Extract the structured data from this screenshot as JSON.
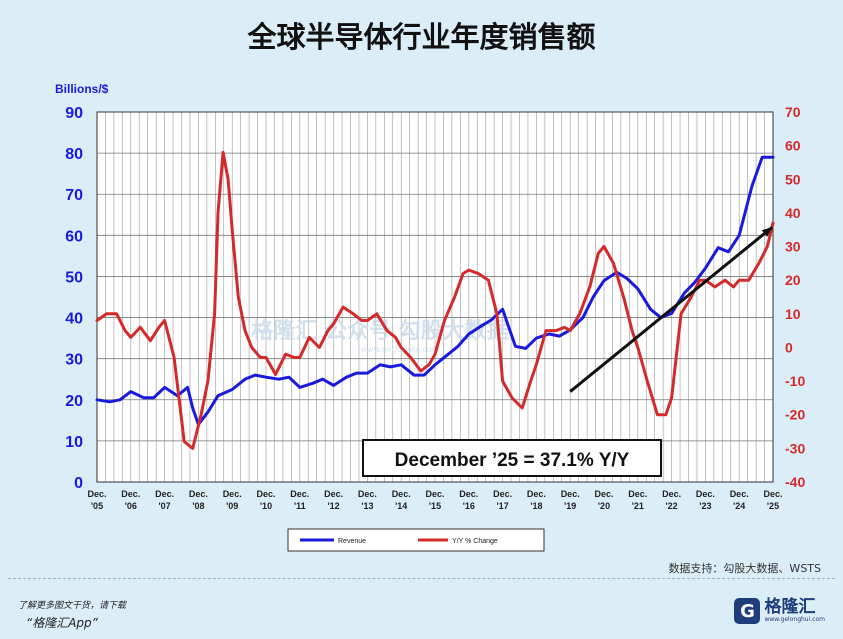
{
  "title": "全球半导体行业年度销售额",
  "source": "数据支持：勾股大数据、WSTS",
  "promo_line1": "了解更多图文干货，请下载",
  "promo_line2": "“格隆汇App”",
  "logo": {
    "mark": "G",
    "name": "格隆汇",
    "url": "www.gelonghui.com"
  },
  "watermark": {
    "text": "格隆汇 公众号 勾股大数据",
    "url": "www.gogudata.com"
  },
  "colors": {
    "revenue": "#1a1adf",
    "yoy": "#d42a2a",
    "left_axis": "#1a1adf",
    "right_axis": "#d42a2a",
    "background": "#dbeef8"
  },
  "chart_data": {
    "type": "line",
    "left_axis_label": "Billions/$",
    "left_ylim": [
      0,
      90
    ],
    "left_ticks": [
      "0",
      "10",
      "20",
      "30",
      "40",
      "50",
      "60",
      "70",
      "80",
      "90"
    ],
    "right_ylim": [
      -40,
      70
    ],
    "right_ticks": [
      "-40",
      "-30",
      "-20",
      "-10",
      "0",
      "10",
      "20",
      "30",
      "40",
      "50",
      "60",
      "70"
    ],
    "x_labels": [
      [
        "Dec.",
        "'05"
      ],
      [
        "Dec.",
        "'06"
      ],
      [
        "Dec.",
        "'07"
      ],
      [
        "Dec.",
        "'08"
      ],
      [
        "Dec.",
        "'09"
      ],
      [
        "Dec.",
        "'10"
      ],
      [
        "Dec.",
        "'11"
      ],
      [
        "Dec.",
        "'12"
      ],
      [
        "Dec.",
        "'13"
      ],
      [
        "Dec.",
        "'14"
      ],
      [
        "Dec.",
        "'15"
      ],
      [
        "Dec.",
        "'16"
      ],
      [
        "Dec.",
        "'17"
      ],
      [
        "Dec.",
        "'18"
      ],
      [
        "Dec.",
        "'19"
      ],
      [
        "Dec.",
        "'20"
      ],
      [
        "Dec.",
        "'21"
      ],
      [
        "Dec.",
        "'22"
      ],
      [
        "Dec.",
        "'23"
      ],
      [
        "Dec.",
        "'24"
      ],
      [
        "Dec.",
        "'25"
      ]
    ],
    "x_range_years": [
      2005.92,
      2025.92
    ],
    "grid": true,
    "annotation": "December ’25 = 37.1% Y/Y",
    "trend_arrow": {
      "from": [
        2019.92,
        22
      ],
      "to": [
        2025.9,
        62
      ]
    },
    "series": [
      {
        "name": "Revenue",
        "axis": "left",
        "x": [
          2005.92,
          2006.3,
          2006.6,
          2006.92,
          2007.3,
          2007.6,
          2007.92,
          2008.3,
          2008.6,
          2008.75,
          2008.92,
          2009.2,
          2009.5,
          2009.92,
          2010.3,
          2010.6,
          2010.92,
          2011.3,
          2011.6,
          2011.92,
          2012.3,
          2012.6,
          2012.92,
          2013.3,
          2013.6,
          2013.92,
          2014.3,
          2014.6,
          2014.92,
          2015.3,
          2015.6,
          2015.92,
          2016.3,
          2016.6,
          2016.92,
          2017.3,
          2017.6,
          2017.92,
          2018.3,
          2018.6,
          2018.92,
          2019.3,
          2019.6,
          2019.92,
          2020.3,
          2020.6,
          2020.92,
          2021.3,
          2021.6,
          2021.92,
          2022.3,
          2022.6,
          2022.92,
          2023.3,
          2023.6,
          2023.92,
          2024.3,
          2024.6,
          2024.92,
          2025.3,
          2025.6,
          2025.92
        ],
        "values": [
          20,
          19.5,
          20,
          22,
          20.5,
          20.5,
          23,
          21,
          23,
          18,
          14,
          17,
          21,
          22.5,
          25,
          26,
          25.5,
          25,
          25.5,
          23,
          24,
          25,
          23.5,
          25.5,
          26.5,
          26.5,
          28.5,
          28,
          28.5,
          26,
          26,
          28.5,
          31,
          33,
          36,
          38,
          39.5,
          42,
          33,
          32.5,
          35,
          36,
          35.5,
          37,
          40,
          45,
          49,
          51,
          49.5,
          47,
          42,
          40,
          41,
          46,
          48.5,
          52,
          57,
          56,
          60,
          72,
          79,
          79
        ]
      },
      {
        "name": "Y/Y % Change",
        "axis": "right",
        "x": [
          2005.92,
          2006.2,
          2006.5,
          2006.75,
          2006.92,
          2007.2,
          2007.5,
          2007.75,
          2007.92,
          2008.2,
          2008.5,
          2008.75,
          2009.0,
          2009.2,
          2009.4,
          2009.5,
          2009.65,
          2009.8,
          2009.92,
          2010.1,
          2010.3,
          2010.5,
          2010.75,
          2010.92,
          2011.2,
          2011.5,
          2011.75,
          2011.92,
          2012.2,
          2012.5,
          2012.75,
          2012.92,
          2013.2,
          2013.5,
          2013.75,
          2013.92,
          2014.2,
          2014.5,
          2014.75,
          2014.92,
          2015.2,
          2015.5,
          2015.75,
          2015.92,
          2016.2,
          2016.5,
          2016.75,
          2016.92,
          2017.2,
          2017.5,
          2017.75,
          2017.92,
          2018.2,
          2018.5,
          2018.75,
          2018.92,
          2019.2,
          2019.5,
          2019.75,
          2019.92,
          2020.2,
          2020.5,
          2020.75,
          2020.92,
          2021.2,
          2021.5,
          2021.75,
          2021.92,
          2022.2,
          2022.5,
          2022.75,
          2022.92,
          2023.2,
          2023.5,
          2023.75,
          2023.92,
          2024.2,
          2024.5,
          2024.75,
          2024.92,
          2025.2,
          2025.5,
          2025.75,
          2025.92
        ],
        "values": [
          8,
          10,
          10,
          5,
          3,
          6,
          2,
          6,
          8,
          -3,
          -28,
          -30,
          -20,
          -10,
          10,
          40,
          58,
          50,
          35,
          15,
          5,
          0,
          -3,
          -3,
          -8,
          -2,
          -3,
          -3,
          3,
          0,
          5,
          7,
          12,
          10,
          8,
          8,
          10,
          5,
          3,
          0,
          -3,
          -7,
          -5,
          -2,
          8,
          15,
          22,
          23,
          22,
          20,
          10,
          -10,
          -15,
          -18,
          -10,
          -5,
          5,
          5,
          6,
          5,
          10,
          18,
          28,
          30,
          25,
          15,
          5,
          0,
          -10,
          -20,
          -20,
          -15,
          10,
          15,
          20,
          20,
          18,
          20,
          18,
          20,
          20,
          25,
          30,
          37
        ]
      }
    ]
  }
}
